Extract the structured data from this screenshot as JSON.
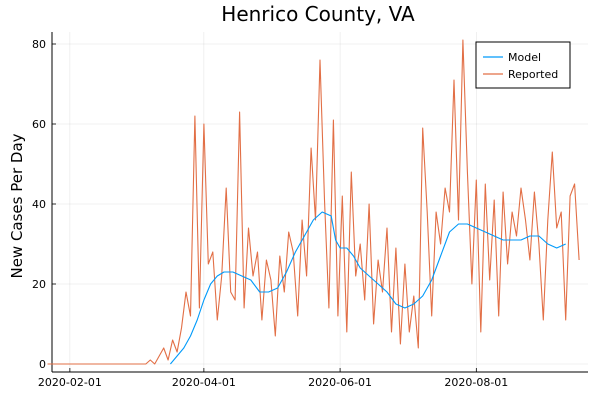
{
  "chart_data": {
    "type": "line",
    "title": "Henrico County, VA",
    "xlabel": "",
    "ylabel": "New Cases Per Day",
    "x_axis": {
      "type": "date",
      "range": [
        "2020-01-24",
        "2020-09-20"
      ],
      "ticks": [
        "2020-02-01",
        "2020-04-01",
        "2020-06-01",
        "2020-08-01"
      ],
      "grid": true
    },
    "y_axis": {
      "range": [
        -2,
        83
      ],
      "ticks": [
        0,
        20,
        40,
        60,
        80
      ],
      "grid": true
    },
    "legend": {
      "position": "top-right"
    },
    "series": [
      {
        "name": "Model",
        "color": "#009AFA",
        "x": [
          "2020-03-17",
          "2020-03-20",
          "2020-03-23",
          "2020-03-26",
          "2020-03-29",
          "2020-04-01",
          "2020-04-04",
          "2020-04-07",
          "2020-04-10",
          "2020-04-14",
          "2020-04-18",
          "2020-04-22",
          "2020-04-26",
          "2020-04-30",
          "2020-05-04",
          "2020-05-08",
          "2020-05-12",
          "2020-05-16",
          "2020-05-20",
          "2020-05-24",
          "2020-05-28",
          "2020-05-30",
          "2020-06-01",
          "2020-06-04",
          "2020-06-07",
          "2020-06-10",
          "2020-06-14",
          "2020-06-18",
          "2020-06-22",
          "2020-06-26",
          "2020-06-30",
          "2020-07-04",
          "2020-07-08",
          "2020-07-12",
          "2020-07-16",
          "2020-07-20",
          "2020-07-24",
          "2020-07-28",
          "2020-08-01",
          "2020-08-05",
          "2020-08-09",
          "2020-08-13",
          "2020-08-17",
          "2020-08-21",
          "2020-08-25",
          "2020-08-29",
          "2020-09-02",
          "2020-09-06",
          "2020-09-10"
        ],
        "y": [
          0,
          2,
          4,
          7,
          11,
          16,
          20,
          22,
          23,
          23,
          22,
          21,
          18,
          18,
          19,
          23,
          28,
          32,
          36,
          38,
          37,
          31,
          29,
          29,
          27,
          24,
          22,
          20,
          18,
          15,
          14,
          15,
          17,
          21,
          27,
          33,
          35,
          35,
          34,
          33,
          32,
          31,
          31,
          31,
          32,
          32,
          30,
          29,
          30
        ]
      },
      {
        "name": "Reported",
        "color": "#E26F46",
        "x": [
          "2020-01-22",
          "2020-03-06",
          "2020-03-08",
          "2020-03-10",
          "2020-03-12",
          "2020-03-14",
          "2020-03-16",
          "2020-03-18",
          "2020-03-20",
          "2020-03-22",
          "2020-03-24",
          "2020-03-26",
          "2020-03-28",
          "2020-03-30",
          "2020-04-01",
          "2020-04-03",
          "2020-04-05",
          "2020-04-07",
          "2020-04-09",
          "2020-04-11",
          "2020-04-13",
          "2020-04-15",
          "2020-04-17",
          "2020-04-19",
          "2020-04-21",
          "2020-04-23",
          "2020-04-25",
          "2020-04-27",
          "2020-04-29",
          "2020-05-01",
          "2020-05-03",
          "2020-05-05",
          "2020-05-07",
          "2020-05-09",
          "2020-05-11",
          "2020-05-13",
          "2020-05-15",
          "2020-05-17",
          "2020-05-19",
          "2020-05-21",
          "2020-05-23",
          "2020-05-25",
          "2020-05-27",
          "2020-05-29",
          "2020-05-31",
          "2020-06-02",
          "2020-06-04",
          "2020-06-06",
          "2020-06-08",
          "2020-06-10",
          "2020-06-12",
          "2020-06-14",
          "2020-06-16",
          "2020-06-18",
          "2020-06-20",
          "2020-06-22",
          "2020-06-24",
          "2020-06-26",
          "2020-06-28",
          "2020-06-30",
          "2020-07-02",
          "2020-07-04",
          "2020-07-06",
          "2020-07-08",
          "2020-07-10",
          "2020-07-12",
          "2020-07-14",
          "2020-07-16",
          "2020-07-18",
          "2020-07-20",
          "2020-07-22",
          "2020-07-24",
          "2020-07-26",
          "2020-07-28",
          "2020-07-30",
          "2020-08-01",
          "2020-08-03",
          "2020-08-05",
          "2020-08-07",
          "2020-08-09",
          "2020-08-11",
          "2020-08-13",
          "2020-08-15",
          "2020-08-17",
          "2020-08-19",
          "2020-08-21",
          "2020-08-23",
          "2020-08-25",
          "2020-08-27",
          "2020-08-29",
          "2020-08-31",
          "2020-09-02",
          "2020-09-04",
          "2020-09-06",
          "2020-09-08",
          "2020-09-10",
          "2020-09-12",
          "2020-09-14",
          "2020-09-16"
        ],
        "y": [
          0,
          0,
          1,
          0,
          2,
          4,
          1,
          6,
          3,
          9,
          18,
          12,
          62,
          14,
          60,
          25,
          28,
          11,
          22,
          44,
          18,
          16,
          63,
          14,
          34,
          22,
          28,
          11,
          26,
          21,
          7,
          27,
          18,
          33,
          28,
          12,
          36,
          22,
          54,
          36,
          76,
          41,
          14,
          61,
          12,
          42,
          8,
          48,
          22,
          30,
          16,
          40,
          10,
          26,
          18,
          34,
          8,
          29,
          5,
          25,
          8,
          17,
          4,
          59,
          38,
          12,
          38,
          30,
          44,
          38,
          71,
          36,
          81,
          48,
          20,
          46,
          8,
          45,
          21,
          41,
          12,
          43,
          25,
          38,
          32,
          44,
          36,
          26,
          43,
          30,
          11,
          36,
          53,
          34,
          38,
          11,
          42,
          45,
          26
        ]
      }
    ]
  }
}
